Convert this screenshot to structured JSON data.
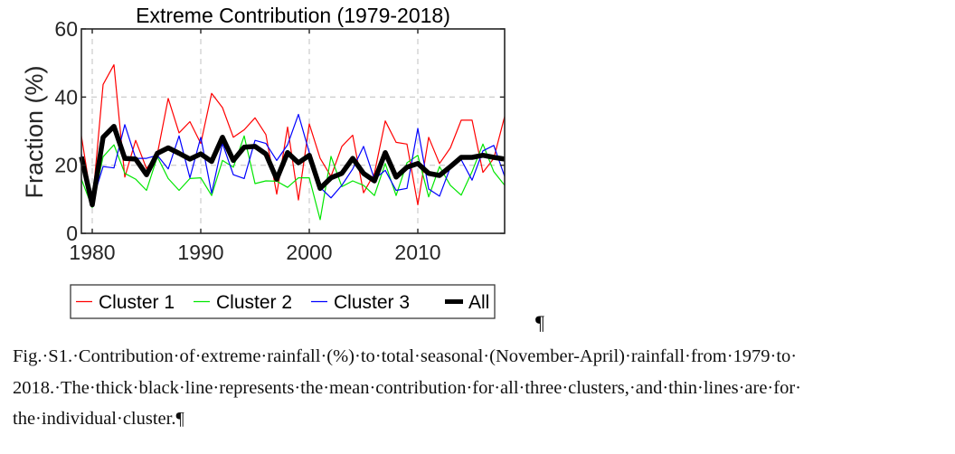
{
  "chart_data": {
    "type": "line",
    "title": "Extreme Contribution (1979-2018)",
    "xlabel": "",
    "ylabel": "Fraction (%)",
    "xlim": [
      1979,
      2018
    ],
    "ylim": [
      0,
      60
    ],
    "xticks": [
      1980,
      1990,
      2000,
      2010
    ],
    "yticks": [
      0,
      20,
      40,
      60
    ],
    "grid": true,
    "legend_position": "bottom-outside",
    "x": [
      1979,
      1980,
      1981,
      1982,
      1983,
      1984,
      1985,
      1986,
      1987,
      1988,
      1989,
      1990,
      1991,
      1992,
      1993,
      1994,
      1995,
      1996,
      1997,
      1998,
      1999,
      2000,
      2001,
      2002,
      2003,
      2004,
      2005,
      2006,
      2007,
      2008,
      2009,
      2010,
      2011,
      2012,
      2013,
      2014,
      2015,
      2016,
      2017,
      2018
    ],
    "series": [
      {
        "name": "Cluster 1",
        "color": "#ff0000",
        "style": "thin",
        "values": [
          28.6,
          8.4,
          43.7,
          49.5,
          16.5,
          27.3,
          19.0,
          23.3,
          39.6,
          29.5,
          32.8,
          26.4,
          41.1,
          36.9,
          28.2,
          30.4,
          33.9,
          29.0,
          11.5,
          31.2,
          9.8,
          32.1,
          22.0,
          16.7,
          25.5,
          28.8,
          11.9,
          17.6,
          33.0,
          26.7,
          26.2,
          8.4,
          28.2,
          20.5,
          25.1,
          33.2,
          33.2,
          17.9,
          22.0,
          34.3
        ]
      },
      {
        "name": "Cluster 2",
        "color": "#00e600",
        "style": "thin",
        "values": [
          15.9,
          7.6,
          22.5,
          26.0,
          17.6,
          15.9,
          12.6,
          22.5,
          16.1,
          12.6,
          16.1,
          16.3,
          11.1,
          21.4,
          19.4,
          28.6,
          14.6,
          15.4,
          15.3,
          13.5,
          16.3,
          16.3,
          4.0,
          22.6,
          13.7,
          15.4,
          14.1,
          11.1,
          20.5,
          11.1,
          20.7,
          22.9,
          10.7,
          19.6,
          14.1,
          11.2,
          18.1,
          26.2,
          18.1,
          14.1
        ]
      },
      {
        "name": "Cluster 3",
        "color": "#0000ff",
        "style": "thin",
        "values": [
          23.3,
          9.3,
          19.6,
          19.2,
          31.9,
          22.0,
          22.0,
          22.9,
          18.9,
          28.6,
          16.3,
          28.2,
          11.8,
          26.4,
          17.2,
          16.1,
          27.3,
          26.4,
          21.4,
          26.0,
          34.9,
          23.7,
          13.5,
          10.4,
          14.1,
          18.9,
          25.5,
          15.9,
          18.5,
          12.6,
          13.2,
          30.8,
          13.0,
          10.9,
          19.4,
          21.6,
          15.6,
          24.2,
          25.8,
          16.7
        ]
      },
      {
        "name": "All",
        "color": "#000000",
        "style": "thick",
        "values": [
          22.5,
          8.4,
          28.2,
          31.4,
          22.0,
          21.8,
          17.2,
          23.5,
          25.1,
          23.5,
          21.8,
          23.3,
          21.1,
          28.2,
          21.4,
          25.3,
          25.5,
          23.3,
          15.9,
          23.7,
          20.7,
          22.9,
          13.2,
          16.3,
          17.6,
          22.0,
          17.6,
          15.4,
          23.7,
          16.5,
          19.4,
          20.5,
          17.6,
          17.0,
          19.6,
          22.3,
          22.3,
          22.9,
          22.3,
          21.8
        ]
      }
    ]
  },
  "document": {
    "pilcrow": "¶",
    "caption_lines": [
      "Fig.·S1.·Contribution·of·extreme·rainfall·(%)·to·total·seasonal·(November-April)·rainfall·from·1979·to·",
      "2018.·The·thick·black·line·represents·the·mean·contribution·for·all·three·clusters,·and·thin·lines·are·for·",
      "the·individual·cluster.¶"
    ]
  }
}
